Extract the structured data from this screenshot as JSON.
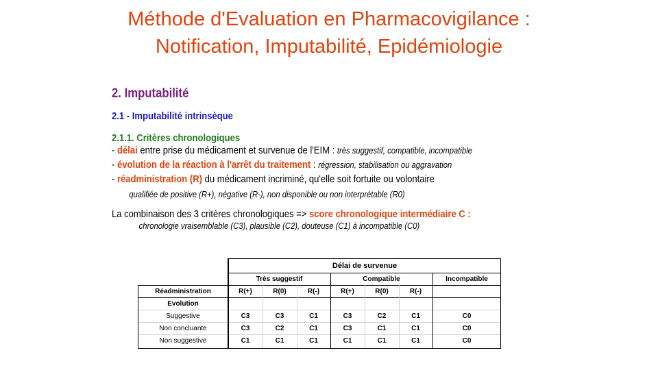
{
  "title": {
    "line1": "Méthode d'Evaluation en Pharmacovigilance :",
    "line2": "Notification, Imputabilité, Epidémiologie"
  },
  "section": {
    "h2": "2. Imputabilité",
    "h21": "2.1 - Imputabilité intrinsèque",
    "h211": "2.1.1. Critères chronologiques",
    "bullet1": {
      "dash": "- ",
      "key": "délai",
      "text": " entre prise du médicament et survenue de l'EIM : ",
      "italic": "très suggestif, compatible, incompatible"
    },
    "bullet2": {
      "dash": "- ",
      "key": "évolution de la réaction à l'arrêt du traitement",
      "text": " : ",
      "italic": "régression, stabilisation ou aggravation"
    },
    "bullet3": {
      "dash": "- ",
      "key": "réadministration (R)",
      "text": " du médicament incriminé, qu'elle soit fortuite  ou volontaire"
    },
    "bullet3_sub": "qualifiée de positive (R+), négative (R-), non disponible ou non interprétable (R0)",
    "combo": {
      "text": "La combinaison des 3 critères chronologiques => ",
      "key": "score chronologique intermédiaire C :"
    },
    "combo_sub": "chronologie vraisemblable (C3), plausible (C2), douteuse (C1) à incompatible (C0)"
  },
  "table": {
    "header_main": "Délai de survenue",
    "groups": [
      "Très suggestif",
      "Compatible",
      "Incompatible"
    ],
    "row_label_reAdmin": "Réadministration",
    "row_label_evolution": "Evolution",
    "r_headers": [
      "R(+)",
      "R(0)",
      "R(-)",
      "R(+)",
      "R(0)",
      "R(-)"
    ],
    "rows": [
      {
        "label": "Suggestive",
        "values": [
          "C3",
          "C3",
          "C1",
          "C3",
          "C2",
          "C1",
          "C0"
        ]
      },
      {
        "label": "Non concluante",
        "values": [
          "C3",
          "C2",
          "C1",
          "C3",
          "C1",
          "C1",
          "C0"
        ]
      },
      {
        "label": "Non suggestive",
        "values": [
          "C1",
          "C1",
          "C1",
          "C1",
          "C1",
          "C1",
          "C0"
        ]
      }
    ]
  }
}
